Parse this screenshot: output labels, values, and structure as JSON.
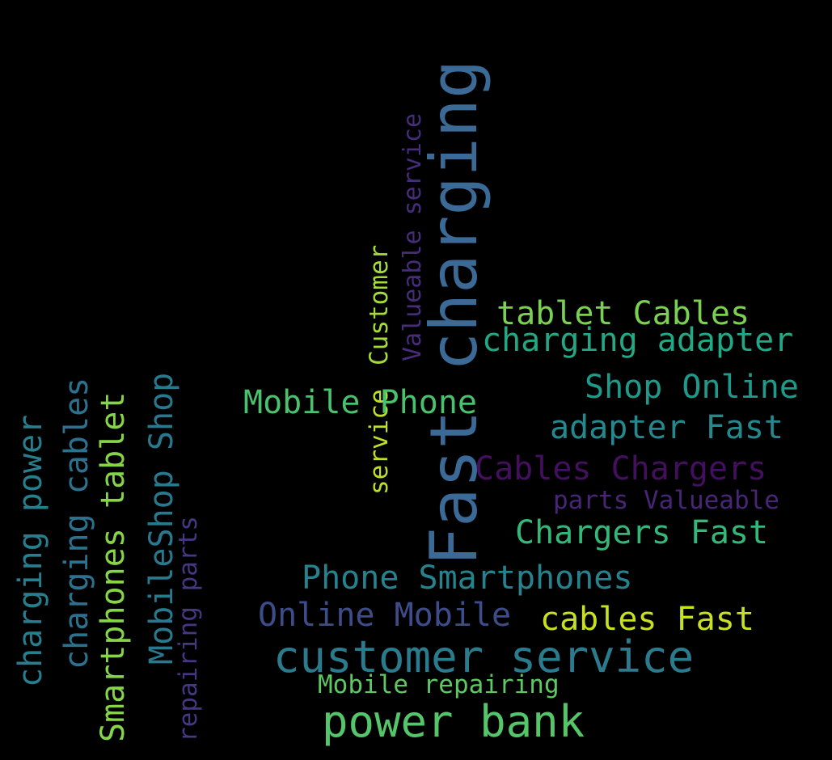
{
  "wordcloud": {
    "background": "#000000",
    "words": {
      "fast_charging": {
        "text": "Fast charging",
        "color": "#3b6a96",
        "orientation": "vertical"
      },
      "valueable_service": {
        "text": "Valueable service",
        "color": "#472c7a",
        "orientation": "vertical"
      },
      "customer": {
        "text": "Customer",
        "color": "#a5db36",
        "orientation": "vertical"
      },
      "service": {
        "text": "service",
        "color": "#bddf26",
        "orientation": "vertical"
      },
      "tablet_cables": {
        "text": "tablet Cables",
        "color": "#7ad151",
        "orientation": "horizontal"
      },
      "charging_adapter": {
        "text": "charging adapter",
        "color": "#22a884",
        "orientation": "horizontal"
      },
      "mobile_phone": {
        "text": "Mobile Phone",
        "color": "#4ac16d",
        "orientation": "horizontal"
      },
      "shop_online": {
        "text": "Shop Online",
        "color": "#1f9a8a",
        "orientation": "horizontal"
      },
      "adapter_fast": {
        "text": "adapter Fast",
        "color": "#23898e",
        "orientation": "horizontal"
      },
      "cables_chargers": {
        "text": "Cables Chargers",
        "color": "#440f5e",
        "orientation": "horizontal"
      },
      "parts_valueable": {
        "text": "parts Valueable",
        "color": "#482576",
        "orientation": "horizontal"
      },
      "chargers_fast": {
        "text": "Chargers Fast",
        "color": "#35b779",
        "orientation": "horizontal"
      },
      "phone_smartphones": {
        "text": "Phone Smartphones",
        "color": "#26828e",
        "orientation": "horizontal"
      },
      "online_mobile": {
        "text": "Online Mobile",
        "color": "#3e4c8a",
        "orientation": "horizontal"
      },
      "cables_fast": {
        "text": "cables Fast",
        "color": "#c8e020",
        "orientation": "horizontal"
      },
      "customer_service": {
        "text": "customer service",
        "color": "#2a7b8e",
        "orientation": "horizontal"
      },
      "mobile_repairing": {
        "text": "Mobile repairing",
        "color": "#5ec962",
        "orientation": "horizontal"
      },
      "power_bank": {
        "text": "power bank",
        "color": "#54c568",
        "orientation": "horizontal"
      },
      "charging_power": {
        "text": "charging power",
        "color": "#277f8e",
        "orientation": "vertical"
      },
      "charging_cables": {
        "text": "charging cables",
        "color": "#2c728e",
        "orientation": "vertical"
      },
      "smartphones_tablet": {
        "text": "Smartphones tablet",
        "color": "#86d549",
        "orientation": "vertical"
      },
      "mobileshop_shop": {
        "text": "MobileShop Shop",
        "color": "#29798e",
        "orientation": "vertical"
      },
      "repairing_parts": {
        "text": "repairing parts",
        "color": "#453781",
        "orientation": "vertical"
      }
    }
  }
}
